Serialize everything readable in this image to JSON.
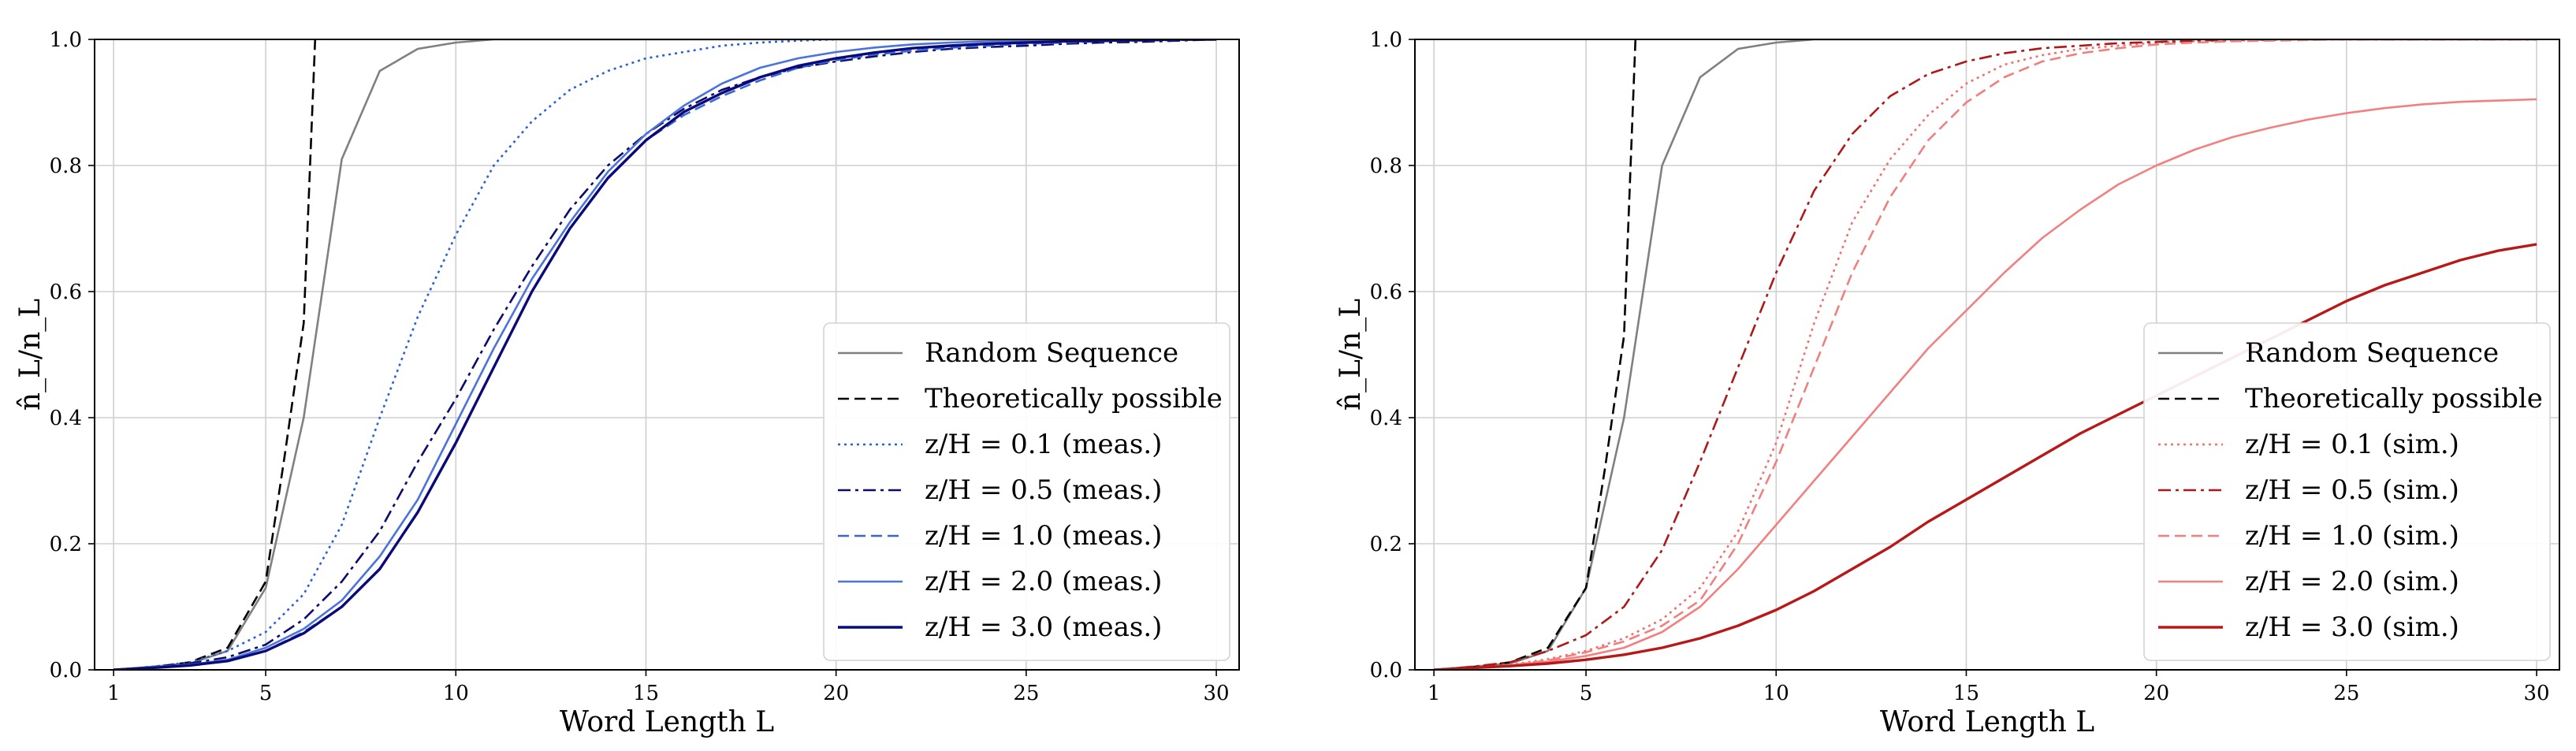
{
  "chart_data": [
    {
      "type": "line",
      "xlabel": "Word Length L",
      "ylabel": "n̂_L/n_L",
      "xlim": [
        0.5,
        30.6
      ],
      "ylim": [
        0.0,
        1.0
      ],
      "xticks": [
        1,
        5,
        10,
        15,
        20,
        25,
        30
      ],
      "yticks": [
        0.0,
        0.2,
        0.4,
        0.6,
        0.8,
        1.0
      ],
      "xtick_labels": [
        "1",
        "5",
        "10",
        "15",
        "20",
        "25",
        "30"
      ],
      "ytick_labels": [
        "0.0",
        "0.2",
        "0.4",
        "0.6",
        "0.8",
        "1.0"
      ],
      "grid": true,
      "legend_position": "lower-right",
      "series": [
        {
          "name": "Random Sequence",
          "color": "#808080",
          "dash": "solid",
          "x": [
            1,
            2,
            3,
            4,
            5,
            6,
            7,
            8,
            9,
            10,
            11,
            12,
            13,
            14,
            15,
            16,
            17,
            18,
            19,
            20,
            21,
            22,
            23,
            24,
            25,
            26,
            27,
            28,
            29,
            30
          ],
          "y": [
            0.0,
            0.005,
            0.01,
            0.03,
            0.13,
            0.4,
            0.81,
            0.95,
            0.985,
            0.995,
            1.0,
            1.0,
            1.0,
            1.0,
            1.0,
            1.0,
            1.0,
            1.0,
            1.0,
            1.0,
            1.0,
            1.0,
            1.0,
            1.0,
            1.0,
            1.0,
            1.0,
            1.0,
            1.0,
            1.0
          ]
        },
        {
          "name": "Theoretically possible",
          "color": "#000000",
          "dash": "dashed",
          "x": [
            1,
            2,
            3,
            4,
            5,
            5.5,
            6,
            6.3
          ],
          "y": [
            0.0,
            0.004,
            0.012,
            0.035,
            0.14,
            0.34,
            0.55,
            1.0
          ]
        },
        {
          "name": "z/H = 0.1 (meas.)",
          "color": "#2a5fd8",
          "dash": "dotted",
          "x": [
            1,
            2,
            3,
            4,
            5,
            6,
            7,
            8,
            9,
            10,
            11,
            12,
            13,
            14,
            15,
            16,
            17,
            18,
            19,
            20
          ],
          "y": [
            0.0,
            0.005,
            0.012,
            0.03,
            0.06,
            0.12,
            0.23,
            0.4,
            0.56,
            0.69,
            0.8,
            0.87,
            0.92,
            0.95,
            0.97,
            0.98,
            0.99,
            0.995,
            0.998,
            1.0
          ]
        },
        {
          "name": "z/H = 0.5 (meas.)",
          "color": "#0b0b6e",
          "dash": "dashdot",
          "x": [
            1,
            2,
            3,
            4,
            5,
            6,
            7,
            8,
            9,
            10,
            11,
            12,
            13,
            14,
            15,
            16,
            17,
            18,
            19,
            20,
            21,
            22,
            23,
            24,
            25,
            26,
            27,
            28,
            29,
            30
          ],
          "y": [
            0.0,
            0.004,
            0.01,
            0.02,
            0.04,
            0.08,
            0.14,
            0.22,
            0.33,
            0.43,
            0.54,
            0.64,
            0.73,
            0.8,
            0.85,
            0.89,
            0.92,
            0.94,
            0.955,
            0.965,
            0.973,
            0.98,
            0.985,
            0.988,
            0.99,
            0.993,
            0.995,
            0.996,
            0.998,
            1.0
          ]
        },
        {
          "name": "z/H = 1.0 (meas.)",
          "color": "#3a66d4",
          "dash": "dashed",
          "x": [
            1,
            2,
            3,
            4,
            5,
            6,
            7,
            8,
            9,
            10,
            11,
            12,
            13,
            14,
            15,
            16,
            17,
            18,
            19,
            20,
            21,
            22,
            23,
            24,
            25,
            26,
            27,
            28,
            29,
            30
          ],
          "y": [
            0.0,
            0.004,
            0.008,
            0.015,
            0.03,
            0.06,
            0.1,
            0.16,
            0.25,
            0.36,
            0.48,
            0.6,
            0.7,
            0.78,
            0.84,
            0.88,
            0.91,
            0.935,
            0.955,
            0.967,
            0.976,
            0.982,
            0.987,
            0.99,
            0.993,
            0.995,
            0.997,
            0.998,
            0.999,
            1.0
          ]
        },
        {
          "name": "z/H = 2.0 (meas.)",
          "color": "#4a74dc",
          "dash": "solid",
          "x": [
            1,
            2,
            3,
            4,
            5,
            6,
            7,
            8,
            9,
            10,
            11,
            12,
            13,
            14,
            15,
            16,
            17,
            18,
            19,
            20,
            21,
            22,
            23,
            24,
            25,
            26,
            27,
            28,
            29,
            30
          ],
          "y": [
            0.0,
            0.004,
            0.008,
            0.016,
            0.035,
            0.065,
            0.11,
            0.18,
            0.27,
            0.39,
            0.51,
            0.62,
            0.71,
            0.79,
            0.85,
            0.895,
            0.93,
            0.955,
            0.97,
            0.98,
            0.987,
            0.992,
            0.995,
            0.997,
            0.998,
            0.999,
            1.0,
            1.0,
            1.0,
            1.0
          ]
        },
        {
          "name": "z/H = 3.0 (meas.)",
          "color": "#0a0a7a",
          "dash": "solid",
          "x": [
            1,
            2,
            3,
            4,
            5,
            6,
            7,
            8,
            9,
            10,
            11,
            12,
            13,
            14,
            15,
            16,
            17,
            18,
            19,
            20,
            21,
            22,
            23,
            24,
            25,
            26,
            27,
            28,
            29,
            30
          ],
          "y": [
            0.0,
            0.003,
            0.007,
            0.014,
            0.03,
            0.058,
            0.1,
            0.16,
            0.25,
            0.36,
            0.48,
            0.6,
            0.7,
            0.78,
            0.84,
            0.885,
            0.915,
            0.94,
            0.958,
            0.97,
            0.979,
            0.986,
            0.99,
            0.993,
            0.995,
            0.997,
            0.998,
            0.999,
            1.0,
            1.0
          ]
        }
      ],
      "legend_labels": [
        "Random Sequence",
        "Theoretically possible",
        "z/H = 0.1 (meas.)",
        "z/H = 0.5 (meas.)",
        "z/H = 1.0 (meas.)",
        "z/H = 2.0 (meas.)",
        "z/H = 3.0 (meas.)"
      ]
    },
    {
      "type": "line",
      "xlabel": "Word Length L",
      "ylabel": "n̂_L/n_L",
      "xlim": [
        0.5,
        30.6
      ],
      "ylim": [
        0.0,
        1.0
      ],
      "xticks": [
        1,
        5,
        10,
        15,
        20,
        25,
        30
      ],
      "yticks": [
        0.0,
        0.2,
        0.4,
        0.6,
        0.8,
        1.0
      ],
      "xtick_labels": [
        "1",
        "5",
        "10",
        "15",
        "20",
        "25",
        "30"
      ],
      "ytick_labels": [
        "0.0",
        "0.2",
        "0.4",
        "0.6",
        "0.8",
        "1.0"
      ],
      "grid": true,
      "legend_position": "lower-right",
      "series": [
        {
          "name": "Random Sequence",
          "color": "#808080",
          "dash": "solid",
          "x": [
            1,
            2,
            3,
            4,
            5,
            6,
            7,
            8,
            9,
            10,
            11,
            12,
            13,
            14,
            15,
            16,
            17,
            18,
            19,
            20,
            21,
            22,
            23,
            24,
            25,
            26,
            27,
            28,
            29,
            30
          ],
          "y": [
            0.0,
            0.005,
            0.01,
            0.03,
            0.13,
            0.4,
            0.8,
            0.94,
            0.985,
            0.995,
            1.0,
            1.0,
            1.0,
            1.0,
            1.0,
            1.0,
            1.0,
            1.0,
            1.0,
            1.0,
            1.0,
            1.0,
            1.0,
            1.0,
            1.0,
            1.0,
            1.0,
            1.0,
            1.0,
            1.0
          ]
        },
        {
          "name": "Theoretically possible",
          "color": "#000000",
          "dash": "dashed",
          "x": [
            1,
            2,
            3,
            4,
            5,
            5.5,
            6,
            6.3
          ],
          "y": [
            0.0,
            0.004,
            0.012,
            0.035,
            0.13,
            0.32,
            0.53,
            1.0
          ]
        },
        {
          "name": "z/H = 0.1 (sim.)",
          "color": "#f07070",
          "dash": "dotted",
          "x": [
            1,
            2,
            3,
            4,
            5,
            6,
            7,
            8,
            9,
            10,
            11,
            12,
            13,
            14,
            15,
            16,
            17,
            18,
            19,
            20,
            21,
            22,
            23,
            24,
            25,
            26,
            27,
            28,
            29,
            30
          ],
          "y": [
            0.0,
            0.003,
            0.008,
            0.017,
            0.03,
            0.05,
            0.08,
            0.13,
            0.22,
            0.36,
            0.55,
            0.71,
            0.81,
            0.88,
            0.93,
            0.96,
            0.975,
            0.985,
            0.99,
            0.995,
            0.997,
            0.998,
            0.999,
            1.0,
            1.0,
            1.0,
            1.0,
            1.0,
            1.0,
            1.0
          ]
        },
        {
          "name": "z/H = 0.5 (sim.)",
          "color": "#b01818",
          "dash": "dashdot",
          "x": [
            1,
            2,
            3,
            4,
            5,
            6,
            7,
            8,
            9,
            10,
            11,
            12,
            13,
            14,
            15,
            16,
            17,
            18,
            19,
            20,
            21,
            22,
            23,
            24,
            25,
            26,
            27,
            28,
            29,
            30
          ],
          "y": [
            0.0,
            0.005,
            0.012,
            0.03,
            0.055,
            0.1,
            0.19,
            0.33,
            0.48,
            0.63,
            0.76,
            0.85,
            0.91,
            0.945,
            0.965,
            0.978,
            0.986,
            0.99,
            0.994,
            0.996,
            0.998,
            0.999,
            1.0,
            1.0,
            1.0,
            1.0,
            1.0,
            1.0,
            1.0,
            1.0
          ]
        },
        {
          "name": "z/H = 1.0 (sim.)",
          "color": "#f08080",
          "dash": "dashed",
          "x": [
            1,
            2,
            3,
            4,
            5,
            6,
            7,
            8,
            9,
            10,
            11,
            12,
            13,
            14,
            15,
            16,
            17,
            18,
            19,
            20,
            21,
            22,
            23,
            24,
            25,
            26,
            27,
            28,
            29,
            30
          ],
          "y": [
            0.0,
            0.003,
            0.007,
            0.015,
            0.028,
            0.045,
            0.07,
            0.11,
            0.2,
            0.33,
            0.48,
            0.63,
            0.75,
            0.84,
            0.9,
            0.94,
            0.965,
            0.978,
            0.986,
            0.992,
            0.995,
            0.997,
            0.998,
            0.999,
            1.0,
            1.0,
            1.0,
            1.0,
            1.0,
            1.0
          ]
        },
        {
          "name": "z/H = 2.0 (sim.)",
          "color": "#f28080",
          "dash": "solid",
          "x": [
            1,
            2,
            3,
            4,
            5,
            6,
            7,
            8,
            9,
            10,
            11,
            12,
            13,
            14,
            15,
            16,
            17,
            18,
            19,
            20,
            21,
            22,
            23,
            24,
            25,
            26,
            27,
            28,
            29,
            30
          ],
          "y": [
            0.0,
            0.003,
            0.007,
            0.013,
            0.022,
            0.035,
            0.06,
            0.1,
            0.16,
            0.23,
            0.3,
            0.37,
            0.44,
            0.51,
            0.57,
            0.63,
            0.685,
            0.73,
            0.77,
            0.8,
            0.825,
            0.845,
            0.86,
            0.873,
            0.883,
            0.891,
            0.897,
            0.901,
            0.903,
            0.905
          ]
        },
        {
          "name": "z/H = 3.0 (sim.)",
          "color": "#b81818",
          "dash": "solid",
          "x": [
            1,
            2,
            3,
            4,
            5,
            6,
            7,
            8,
            9,
            10,
            11,
            12,
            13,
            14,
            15,
            16,
            17,
            18,
            19,
            20,
            21,
            22,
            23,
            24,
            25,
            26,
            27,
            28,
            29,
            30
          ],
          "y": [
            0.0,
            0.003,
            0.006,
            0.01,
            0.016,
            0.024,
            0.035,
            0.05,
            0.07,
            0.095,
            0.125,
            0.16,
            0.195,
            0.235,
            0.27,
            0.305,
            0.34,
            0.375,
            0.405,
            0.435,
            0.465,
            0.495,
            0.525,
            0.555,
            0.585,
            0.61,
            0.63,
            0.65,
            0.665,
            0.675
          ]
        }
      ],
      "legend_labels": [
        "Random Sequence",
        "Theoretically possible",
        "z/H = 0.1 (sim.)",
        "z/H = 0.5 (sim.)",
        "z/H = 1.0 (sim.)",
        "z/H = 2.0 (sim.)",
        "z/H = 3.0 (sim.)"
      ]
    }
  ]
}
